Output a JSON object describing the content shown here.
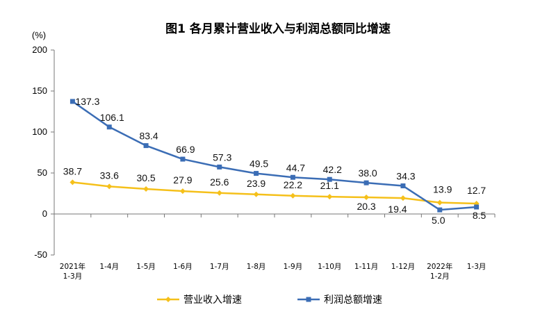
{
  "chart_data": {
    "type": "line",
    "title": "图1  各月累计营业收入与利润总额同比增速",
    "ylabel": "(%)",
    "xlabel": "",
    "ylim": [
      -50,
      200
    ],
    "yticks": [
      200,
      150,
      100,
      50,
      0,
      -50
    ],
    "grid": false,
    "legend_position": "bottom",
    "categories": [
      [
        "2021年",
        "1-3月"
      ],
      [
        "1-4月"
      ],
      [
        "1-5月"
      ],
      [
        "1-6月"
      ],
      [
        "1-7月"
      ],
      [
        "1-8月"
      ],
      [
        "1-9月"
      ],
      [
        "1-10月"
      ],
      [
        "1-11月"
      ],
      [
        "1-12月"
      ],
      [
        "2022年",
        "1-2月"
      ],
      [
        "1-3月"
      ]
    ],
    "series": [
      {
        "name": "营业收入增速",
        "color": "#F5C01A",
        "marker": "diamond",
        "values": [
          38.7,
          33.6,
          30.5,
          27.9,
          25.6,
          23.9,
          22.2,
          21.1,
          20.3,
          19.4,
          13.9,
          12.7
        ],
        "labels": [
          "38.7",
          "33.6",
          "30.5",
          "27.9",
          "25.6",
          "23.9",
          "22.2",
          "21.1",
          "20.3",
          "19.4",
          "13.9",
          "12.7"
        ]
      },
      {
        "name": "利润总额增速",
        "color": "#3B6DB5",
        "marker": "square",
        "values": [
          137.3,
          106.1,
          83.4,
          66.9,
          57.3,
          49.5,
          44.7,
          42.2,
          38.0,
          34.3,
          5.0,
          8.5
        ],
        "labels": [
          "137.3",
          "106.1",
          "83.4",
          "66.9",
          "57.3",
          "49.5",
          "44.7",
          "42.2",
          "38.0",
          "34.3",
          "5.0",
          "8.5"
        ]
      }
    ]
  }
}
